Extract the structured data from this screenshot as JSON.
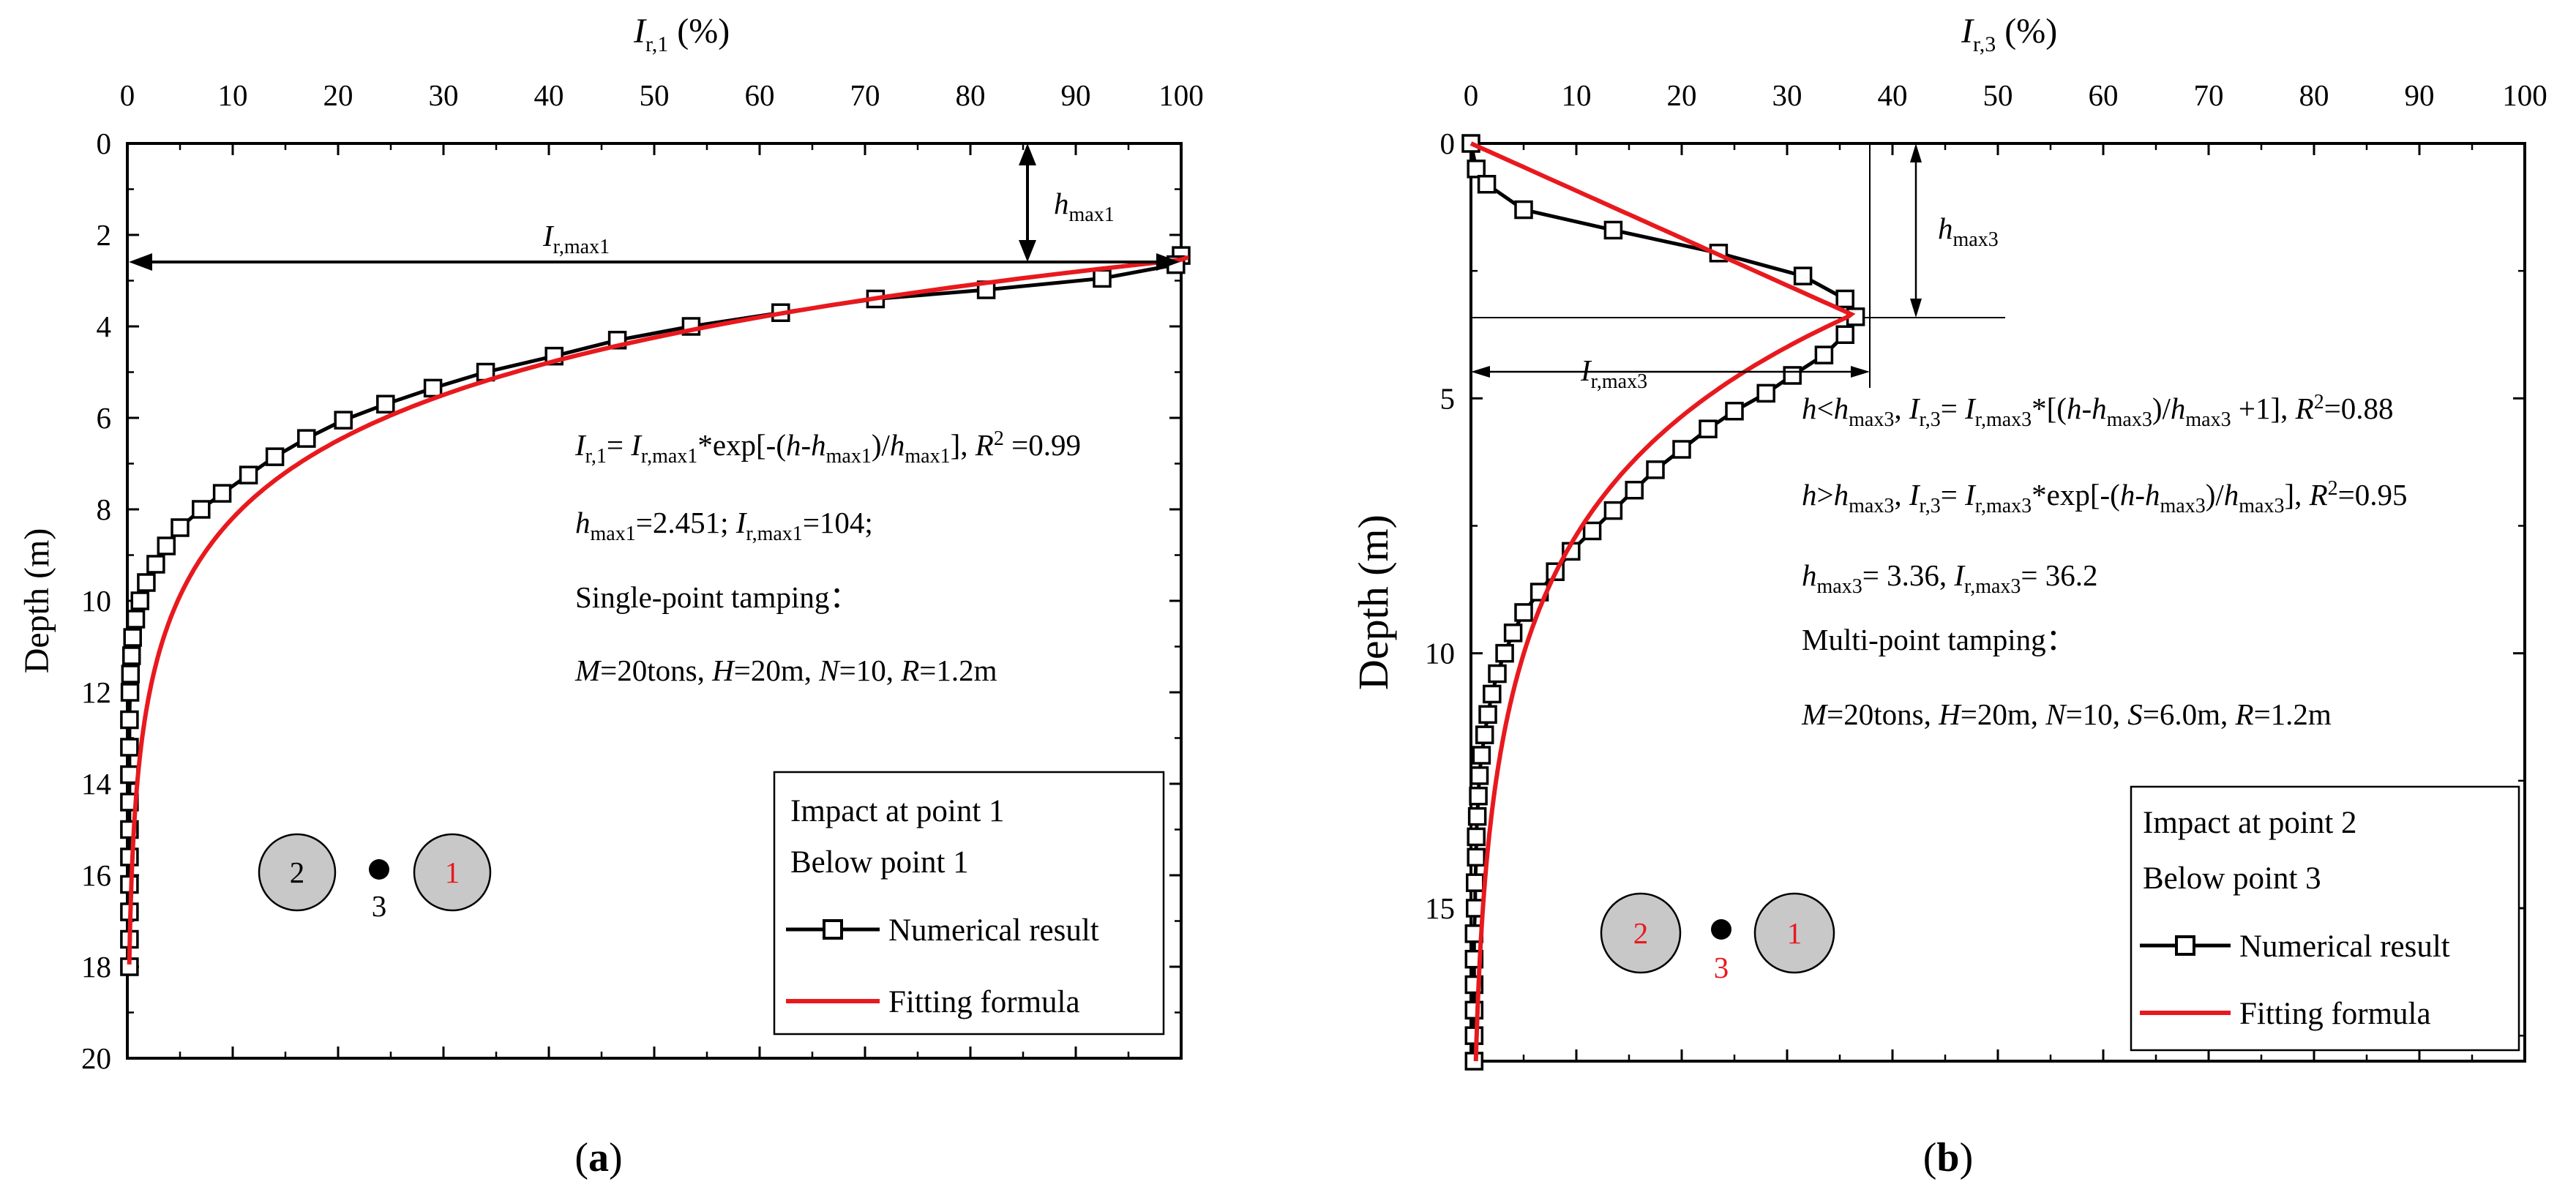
{
  "captions": {
    "a": "(a)",
    "b": "(b)"
  },
  "colors": {
    "numerical": "#000000",
    "fitting": "#e8191e",
    "circle_fill": "#c8c8c8"
  },
  "chart_data": [
    {
      "id": "a",
      "type": "line",
      "xlabel": "I r,1 (%)",
      "ylabel": "Depth (m)",
      "xlim": [
        0,
        100
      ],
      "ylim": [
        0,
        20
      ],
      "y_inverted": true,
      "x_axis_position": "top",
      "xticks": [
        0,
        10,
        20,
        30,
        40,
        50,
        60,
        70,
        80,
        90,
        100
      ],
      "yticks": [
        0,
        2,
        4,
        6,
        8,
        10,
        12,
        14,
        16,
        18,
        20
      ],
      "series": [
        {
          "name": "Numerical result",
          "style": "black line with open square markers",
          "points": [
            [
              100,
              2.45
            ],
            [
              99.5,
              2.65
            ],
            [
              92.5,
              2.95
            ],
            [
              81.5,
              3.2
            ],
            [
              71,
              3.4
            ],
            [
              62,
              3.7
            ],
            [
              53.5,
              4.0
            ],
            [
              46.5,
              4.3
            ],
            [
              40.5,
              4.65
            ],
            [
              34,
              5.0
            ],
            [
              29,
              5.35
            ],
            [
              24.5,
              5.7
            ],
            [
              20.5,
              6.05
            ],
            [
              17,
              6.45
            ],
            [
              14,
              6.85
            ],
            [
              11.5,
              7.25
            ],
            [
              9,
              7.65
            ],
            [
              7,
              8.0
            ],
            [
              5,
              8.4
            ],
            [
              3.7,
              8.8
            ],
            [
              2.7,
              9.2
            ],
            [
              1.8,
              9.6
            ],
            [
              1.2,
              10.0
            ],
            [
              0.8,
              10.4
            ],
            [
              0.5,
              10.8
            ],
            [
              0.4,
              11.2
            ],
            [
              0.3,
              11.6
            ],
            [
              0.25,
              12.0
            ],
            [
              0.2,
              12.6
            ],
            [
              0.2,
              13.2
            ],
            [
              0.2,
              13.8
            ],
            [
              0.2,
              14.4
            ],
            [
              0.2,
              15.0
            ],
            [
              0.2,
              15.6
            ],
            [
              0.2,
              16.2
            ],
            [
              0.2,
              16.8
            ],
            [
              0.2,
              17.4
            ],
            [
              0.2,
              18.0
            ]
          ]
        },
        {
          "name": "Fitting formula",
          "style": "red solid line",
          "formula": "I_r,1 = I_r,max1 * exp[-(h - h_max1)/h_max1]",
          "params": {
            "h_max": 2.451,
            "I_max": 104,
            "R2": 0.99
          }
        }
      ],
      "annotations": {
        "i_arrow_label": "I r,max1",
        "h_arrow_label": "h max1",
        "formula_line": "I r,1 = I r,max1 *exp[-(h-h max1 )/h max1 ], R 2 =0.99",
        "params_line": "h max1 =2.451; I r,max1 =104;",
        "method_line": "Single-point tamping：",
        "setup_line": "M=20tons, H=20m, N=10, R=1.2m"
      },
      "legend": {
        "position": "bottom-right",
        "lines": [
          "Impact at point 1",
          "Below point 1"
        ],
        "entries": [
          "Numerical result",
          "Fitting formula"
        ]
      },
      "points_diagram": {
        "left_circle": "2",
        "dot_label": "3",
        "right_circle": "1"
      }
    },
    {
      "id": "b",
      "type": "line",
      "xlabel": "I r,3 (%)",
      "ylabel": "Depth (m)",
      "xlim": [
        0,
        100
      ],
      "ylim": [
        0,
        18
      ],
      "y_inverted": true,
      "x_axis_position": "top",
      "xticks": [
        0,
        10,
        20,
        30,
        40,
        50,
        60,
        70,
        80,
        90,
        100
      ],
      "yticks": [
        0,
        5,
        10,
        15
      ],
      "series": [
        {
          "name": "Numerical result",
          "style": "black line with open square markers",
          "points": [
            [
              0,
              0
            ],
            [
              0.5,
              0.5
            ],
            [
              1.5,
              0.8
            ],
            [
              5,
              1.3
            ],
            [
              13.5,
              1.7
            ],
            [
              23.5,
              2.15
            ],
            [
              31.5,
              2.6
            ],
            [
              35.5,
              3.05
            ],
            [
              36.5,
              3.4
            ],
            [
              35.5,
              3.75
            ],
            [
              33.5,
              4.15
            ],
            [
              30.5,
              4.55
            ],
            [
              28,
              4.9
            ],
            [
              25,
              5.25
            ],
            [
              22.5,
              5.6
            ],
            [
              20,
              6.0
            ],
            [
              17.5,
              6.4
            ],
            [
              15.5,
              6.8
            ],
            [
              13.5,
              7.2
            ],
            [
              11.5,
              7.6
            ],
            [
              9.5,
              8.0
            ],
            [
              8,
              8.4
            ],
            [
              6.5,
              8.8
            ],
            [
              5,
              9.2
            ],
            [
              4,
              9.6
            ],
            [
              3.2,
              10.0
            ],
            [
              2.5,
              10.4
            ],
            [
              2.0,
              10.8
            ],
            [
              1.6,
              11.2
            ],
            [
              1.3,
              11.6
            ],
            [
              1.0,
              12.0
            ],
            [
              0.8,
              12.4
            ],
            [
              0.7,
              12.8
            ],
            [
              0.6,
              13.2
            ],
            [
              0.5,
              13.6
            ],
            [
              0.5,
              14.0
            ],
            [
              0.4,
              14.5
            ],
            [
              0.4,
              15.0
            ],
            [
              0.3,
              15.5
            ],
            [
              0.3,
              16.0
            ],
            [
              0.3,
              16.5
            ],
            [
              0.3,
              17.0
            ],
            [
              0.3,
              17.5
            ],
            [
              0.3,
              18.0
            ]
          ]
        },
        {
          "name": "Fitting formula",
          "style": "red solid line",
          "formula": "h<h_max3: I = I_max*[(h-h_max3)/h_max3+1]; h>h_max3: I = I_max*exp[-(h-h_max3)/h_max3]",
          "params": {
            "h_max": 3.36,
            "I_max": 36.2,
            "R2_linear": 0.88,
            "R2_exp": 0.95
          }
        }
      ],
      "annotations": {
        "i_arrow_label": "I r,max3",
        "h_arrow_label": "h max3",
        "formula_line1": "h<h max3 , I r,3 = I r,max3 *[(h-h max3 )/h max3 +1], R 2 =0.88",
        "formula_line2": "h>h max3 , I r,3 = I r,max3 *exp[-(h-h max3 )/h max3 ], R 2 =0.95",
        "params_line": "h max3 = 3.36,    I r,max3 = 36.2",
        "method_line": "Multi-point tamping：",
        "setup_line": "M=20tons, H=20m,  N=10, S=6.0m, R=1.2m"
      },
      "legend": {
        "position": "bottom-right",
        "lines": [
          "Impact at point 2",
          "Below point 3"
        ],
        "entries": [
          "Numerical result",
          "Fitting formula"
        ]
      },
      "points_diagram": {
        "left_circle": "2",
        "dot_label": "3",
        "right_circle": "1"
      }
    }
  ]
}
